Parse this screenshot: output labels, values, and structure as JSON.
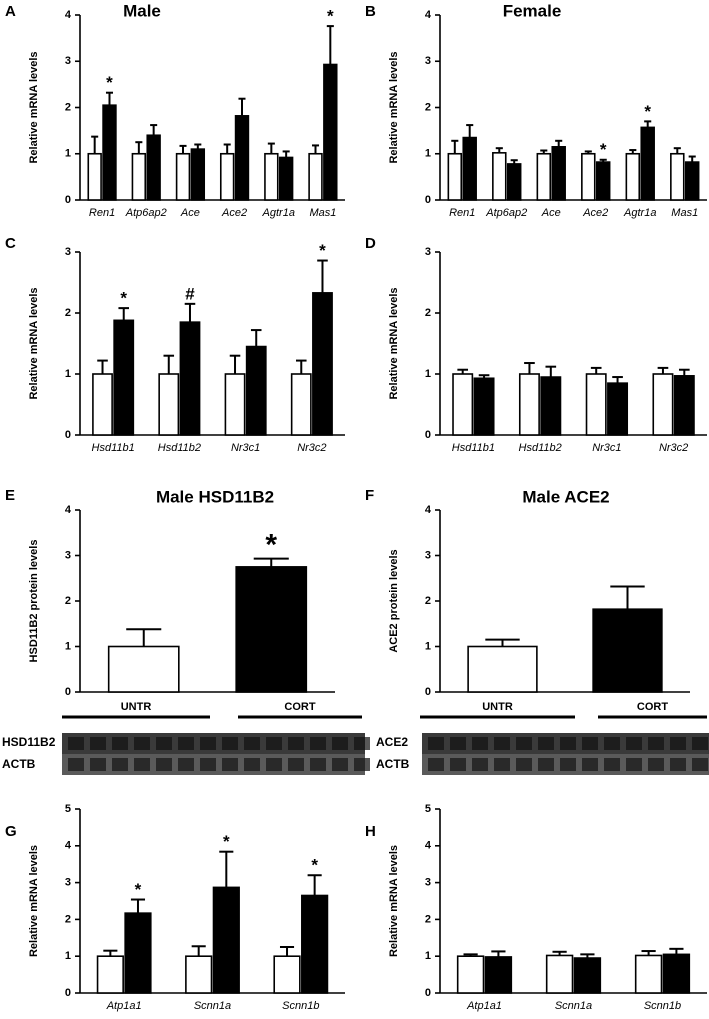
{
  "chart_data": [
    {
      "type": "bar",
      "panel": "A",
      "title": "Male",
      "y_label": "Relative mRNA levels",
      "categories": [
        "Ren1",
        "Atp6ap2",
        "Ace",
        "Ace2",
        "Agtr1a",
        "Mas1"
      ],
      "series": [
        {
          "color": "#ffffff",
          "values": [
            1,
            1,
            1,
            1,
            1,
            1
          ],
          "errors": [
            0.37,
            0.25,
            0.17,
            0.2,
            0.22,
            0.18
          ]
        },
        {
          "color": "#000000",
          "values": [
            2.05,
            1.4,
            1.1,
            1.82,
            0.92,
            2.93
          ],
          "errors": [
            0.27,
            0.22,
            0.1,
            0.37,
            0.13,
            0.83
          ],
          "significance": [
            "*",
            null,
            null,
            null,
            null,
            "*"
          ]
        }
      ],
      "ylim": [
        0,
        4
      ],
      "yticks": [
        0,
        1,
        2,
        3,
        4
      ]
    },
    {
      "type": "bar",
      "panel": "B",
      "title": "Female",
      "y_label": "Relative mRNA levels",
      "categories": [
        "Ren1",
        "Atp6ap2",
        "Ace",
        "Ace2",
        "Agtr1a",
        "Mas1"
      ],
      "series": [
        {
          "color": "#ffffff",
          "values": [
            1,
            1.02,
            1,
            1,
            1,
            1
          ],
          "errors": [
            0.28,
            0.1,
            0.07,
            0.05,
            0.08,
            0.12
          ]
        },
        {
          "color": "#000000",
          "values": [
            1.35,
            0.78,
            1.15,
            0.82,
            1.57,
            0.82
          ],
          "errors": [
            0.27,
            0.08,
            0.13,
            0.05,
            0.13,
            0.12
          ],
          "significance": [
            null,
            null,
            null,
            "*",
            "*",
            null
          ]
        }
      ],
      "ylim": [
        0,
        4
      ],
      "yticks": [
        0,
        1,
        2,
        3,
        4
      ]
    },
    {
      "type": "bar",
      "panel": "C",
      "y_label": "Relative mRNA levels",
      "categories": [
        "Hsd11b1",
        "Hsd11b2",
        "Nr3c1",
        "Nr3c2"
      ],
      "series": [
        {
          "color": "#ffffff",
          "values": [
            1,
            1,
            1,
            1
          ],
          "errors": [
            0.22,
            0.3,
            0.3,
            0.22
          ]
        },
        {
          "color": "#000000",
          "values": [
            1.88,
            1.85,
            1.45,
            2.33
          ],
          "errors": [
            0.2,
            0.3,
            0.27,
            0.53
          ],
          "significance": [
            "*",
            "#",
            null,
            "*"
          ]
        }
      ],
      "ylim": [
        0,
        3
      ],
      "yticks": [
        0,
        1,
        2,
        3
      ]
    },
    {
      "type": "bar",
      "panel": "D",
      "y_label": "Relative mRNA levels",
      "categories": [
        "Hsd11b1",
        "Hsd11b2",
        "Nr3c1",
        "Nr3c2"
      ],
      "series": [
        {
          "color": "#ffffff",
          "values": [
            1,
            1,
            1,
            1
          ],
          "errors": [
            0.07,
            0.18,
            0.1,
            0.1
          ]
        },
        {
          "color": "#000000",
          "values": [
            0.93,
            0.95,
            0.85,
            0.97
          ],
          "errors": [
            0.05,
            0.17,
            0.1,
            0.1
          ]
        }
      ],
      "ylim": [
        0,
        3
      ],
      "yticks": [
        0,
        1,
        2,
        3
      ]
    },
    {
      "type": "bar",
      "panel": "E",
      "title": "Male HSD11B2",
      "y_label": "HSD11B2 protein levels",
      "categories": [
        "UNTR",
        "CORT"
      ],
      "values": [
        1,
        2.75
      ],
      "errors": [
        0.38,
        0.18
      ],
      "colors": [
        "#ffffff",
        "#000000"
      ],
      "significance": [
        null,
        "*"
      ],
      "blot_labels": [
        "HSD11B2",
        "ACTB"
      ],
      "ylim": [
        0,
        4
      ],
      "yticks": [
        0,
        1,
        2,
        3,
        4
      ]
    },
    {
      "type": "bar",
      "panel": "F",
      "title": "Male ACE2",
      "y_label": "ACE2 protein levels",
      "categories": [
        "UNTR",
        "CORT"
      ],
      "values": [
        1,
        1.82
      ],
      "errors": [
        0.15,
        0.5
      ],
      "colors": [
        "#ffffff",
        "#000000"
      ],
      "blot_labels": [
        "ACE2",
        "ACTB"
      ],
      "ylim": [
        0,
        4
      ],
      "yticks": [
        0,
        1,
        2,
        3,
        4
      ]
    },
    {
      "type": "bar",
      "panel": "G",
      "y_label": "Relative mRNA levels",
      "categories": [
        "Atp1a1",
        "Scnn1a",
        "Scnn1b"
      ],
      "series": [
        {
          "color": "#ffffff",
          "values": [
            1,
            1,
            1
          ],
          "errors": [
            0.15,
            0.27,
            0.25
          ]
        },
        {
          "color": "#000000",
          "values": [
            2.17,
            2.87,
            2.65
          ],
          "errors": [
            0.37,
            0.97,
            0.55
          ],
          "significance": [
            "*",
            "*",
            "*"
          ]
        }
      ],
      "ylim": [
        0,
        5
      ],
      "yticks": [
        0,
        1,
        2,
        3,
        4,
        5
      ]
    },
    {
      "type": "bar",
      "panel": "H",
      "y_label": "Relative mRNA levels",
      "categories": [
        "Atp1a1",
        "Scnn1a",
        "Scnn1b"
      ],
      "series": [
        {
          "color": "#ffffff",
          "values": [
            1,
            1.02,
            1.02
          ],
          "errors": [
            0.05,
            0.1,
            0.12
          ]
        },
        {
          "color": "#000000",
          "values": [
            0.98,
            0.95,
            1.05
          ],
          "errors": [
            0.15,
            0.1,
            0.15
          ]
        }
      ],
      "ylim": [
        0,
        5
      ],
      "yticks": [
        0,
        1,
        2,
        3,
        4,
        5
      ]
    }
  ]
}
